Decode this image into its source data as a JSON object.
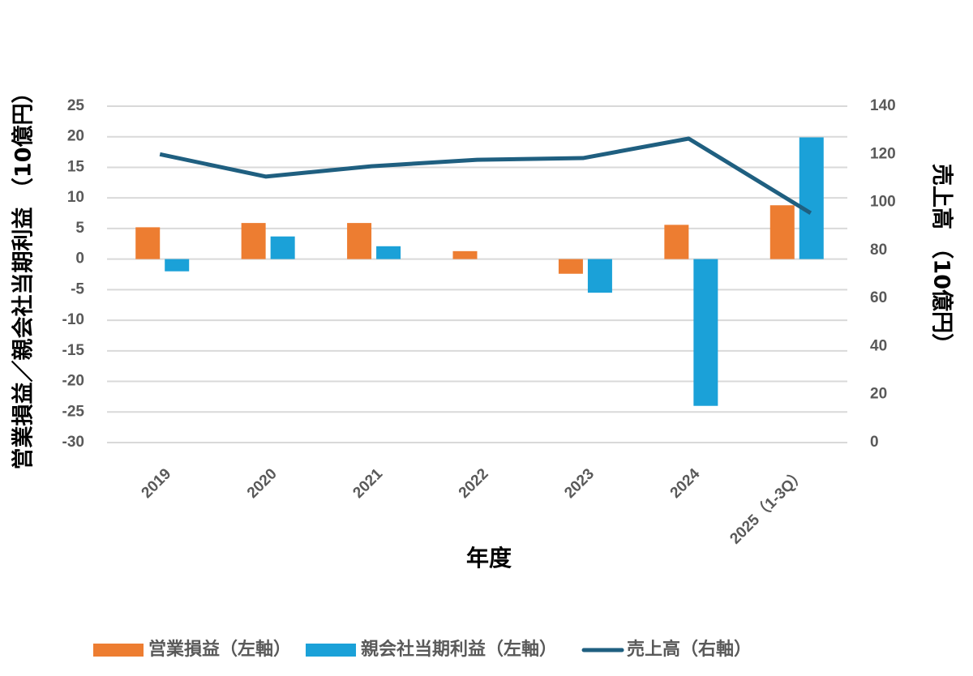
{
  "chart_data": {
    "type": "bar-line",
    "x_label": "年度",
    "y_label": "営業損益／親会社当期利益 （10億円）",
    "y2_label": "売上高 （10億円）",
    "categories": [
      "2019",
      "2020",
      "2021",
      "2022",
      "2023",
      "2024",
      "2025（1-3Q）"
    ],
    "series": [
      {
        "name": "営業損益（左軸）",
        "type": "bar",
        "color": "#ed7d31",
        "values": [
          5.2,
          5.9,
          5.9,
          1.3,
          -2.4,
          5.6,
          8.8
        ]
      },
      {
        "name": "親会社当期利益（左軸）",
        "type": "bar",
        "color": "#1ba1d8",
        "values": [
          -2,
          3.7,
          2.1,
          null,
          -5.5,
          -24,
          19.9
        ]
      },
      {
        "name": "売上高（右軸）",
        "type": "line",
        "axis": "y2",
        "color": "#1f5f80",
        "values": [
          120,
          110.7,
          115,
          117.7,
          118.4,
          126.5,
          95.5
        ]
      }
    ],
    "ylim": [
      -30,
      25
    ],
    "yticks": [
      -30,
      -25,
      -20,
      -15,
      -10,
      -5,
      0,
      5,
      10,
      15,
      20,
      25
    ],
    "y2lim": [
      0,
      140
    ],
    "y2ticks": [
      0,
      20,
      40,
      60,
      80,
      100,
      120,
      140
    ],
    "negative_tick_color": "#e00000",
    "grid": true,
    "legend": "bottom"
  }
}
